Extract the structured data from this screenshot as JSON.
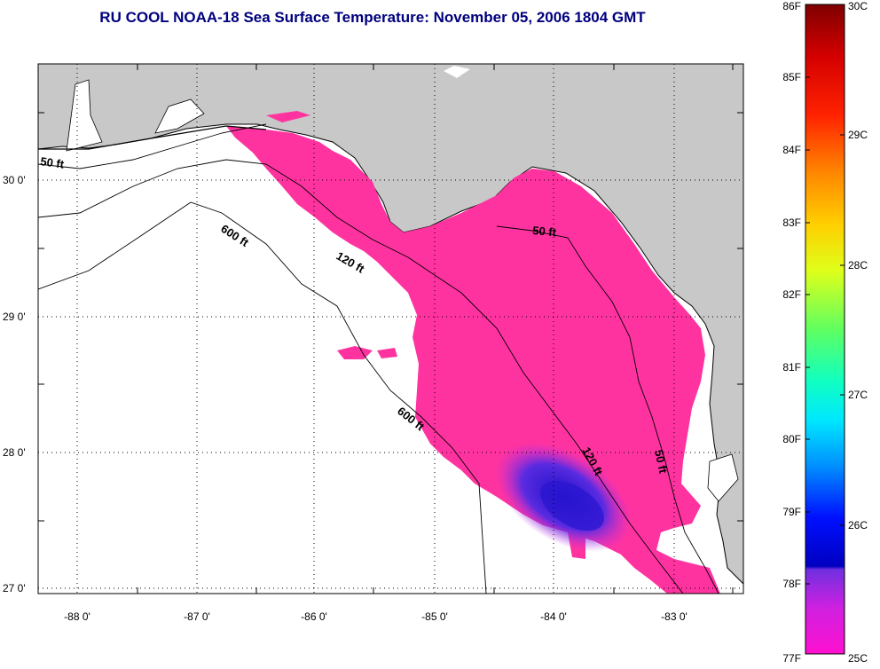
{
  "title": "RU COOL  NOAA-18  Sea Surface Temperature:  November 05, 2006 1804 GMT",
  "latitude_labels": [
    "30 0'",
    "29 0'",
    "28 0'",
    "27 0'"
  ],
  "longitude_labels": [
    "-88 0'",
    "-87 0'",
    "-86 0'",
    "-85 0'",
    "-84 0'",
    "-83 0'"
  ],
  "contour_labels": {
    "c50_west": "50 ft",
    "c600_north": "600 ft",
    "c120_north": "120 ft",
    "c50_east": "50 ft",
    "c600_south": "600 ft",
    "c120_south": "120 ft",
    "c50_south": "50 ft"
  },
  "colorbar": {
    "fahrenheit_labels": [
      "86F",
      "85F",
      "84F",
      "83F",
      "82F",
      "81F",
      "80F",
      "79F",
      "78F",
      "77F"
    ],
    "celsius_labels": [
      "30C",
      "29C",
      "28C",
      "27C",
      "26C",
      "25C"
    ]
  },
  "colors": {
    "title": "#00007f",
    "land": "#c8c8c8",
    "warm_water": "#ff33a0",
    "cool_water": "#3a1fd6"
  }
}
